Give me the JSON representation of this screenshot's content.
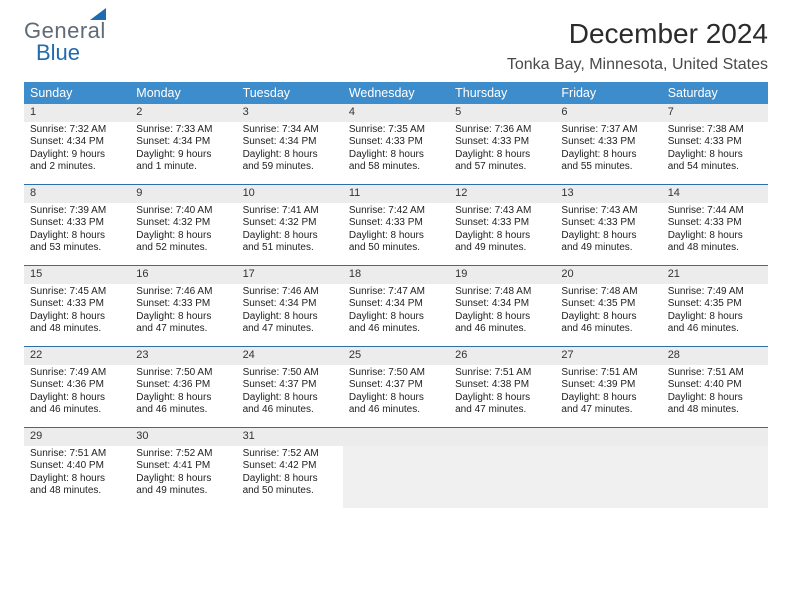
{
  "logo": {
    "text_gray": "Gener",
    "text_a": "a",
    "text_l": "l",
    "text_blue": "Blue"
  },
  "header": {
    "month_title": "December 2024",
    "location": "Tonka Bay, Minnesota, United States"
  },
  "colors": {
    "header_bg": "#3d8ccc",
    "header_text": "#ffffff",
    "week_divider": "#2f6fa8",
    "daynum_bg": "#ececec",
    "logo_gray": "#5f6b76",
    "logo_blue": "#1f6bb0",
    "page_bg": "#ffffff"
  },
  "day_names": [
    "Sunday",
    "Monday",
    "Tuesday",
    "Wednesday",
    "Thursday",
    "Friday",
    "Saturday"
  ],
  "weeks": [
    [
      {
        "n": "1",
        "sunrise": "Sunrise: 7:32 AM",
        "sunset": "Sunset: 4:34 PM",
        "daylight": "Daylight: 9 hours and 2 minutes."
      },
      {
        "n": "2",
        "sunrise": "Sunrise: 7:33 AM",
        "sunset": "Sunset: 4:34 PM",
        "daylight": "Daylight: 9 hours and 1 minute."
      },
      {
        "n": "3",
        "sunrise": "Sunrise: 7:34 AM",
        "sunset": "Sunset: 4:34 PM",
        "daylight": "Daylight: 8 hours and 59 minutes."
      },
      {
        "n": "4",
        "sunrise": "Sunrise: 7:35 AM",
        "sunset": "Sunset: 4:33 PM",
        "daylight": "Daylight: 8 hours and 58 minutes."
      },
      {
        "n": "5",
        "sunrise": "Sunrise: 7:36 AM",
        "sunset": "Sunset: 4:33 PM",
        "daylight": "Daylight: 8 hours and 57 minutes."
      },
      {
        "n": "6",
        "sunrise": "Sunrise: 7:37 AM",
        "sunset": "Sunset: 4:33 PM",
        "daylight": "Daylight: 8 hours and 55 minutes."
      },
      {
        "n": "7",
        "sunrise": "Sunrise: 7:38 AM",
        "sunset": "Sunset: 4:33 PM",
        "daylight": "Daylight: 8 hours and 54 minutes."
      }
    ],
    [
      {
        "n": "8",
        "sunrise": "Sunrise: 7:39 AM",
        "sunset": "Sunset: 4:33 PM",
        "daylight": "Daylight: 8 hours and 53 minutes."
      },
      {
        "n": "9",
        "sunrise": "Sunrise: 7:40 AM",
        "sunset": "Sunset: 4:32 PM",
        "daylight": "Daylight: 8 hours and 52 minutes."
      },
      {
        "n": "10",
        "sunrise": "Sunrise: 7:41 AM",
        "sunset": "Sunset: 4:32 PM",
        "daylight": "Daylight: 8 hours and 51 minutes."
      },
      {
        "n": "11",
        "sunrise": "Sunrise: 7:42 AM",
        "sunset": "Sunset: 4:33 PM",
        "daylight": "Daylight: 8 hours and 50 minutes."
      },
      {
        "n": "12",
        "sunrise": "Sunrise: 7:43 AM",
        "sunset": "Sunset: 4:33 PM",
        "daylight": "Daylight: 8 hours and 49 minutes."
      },
      {
        "n": "13",
        "sunrise": "Sunrise: 7:43 AM",
        "sunset": "Sunset: 4:33 PM",
        "daylight": "Daylight: 8 hours and 49 minutes."
      },
      {
        "n": "14",
        "sunrise": "Sunrise: 7:44 AM",
        "sunset": "Sunset: 4:33 PM",
        "daylight": "Daylight: 8 hours and 48 minutes."
      }
    ],
    [
      {
        "n": "15",
        "sunrise": "Sunrise: 7:45 AM",
        "sunset": "Sunset: 4:33 PM",
        "daylight": "Daylight: 8 hours and 48 minutes."
      },
      {
        "n": "16",
        "sunrise": "Sunrise: 7:46 AM",
        "sunset": "Sunset: 4:33 PM",
        "daylight": "Daylight: 8 hours and 47 minutes."
      },
      {
        "n": "17",
        "sunrise": "Sunrise: 7:46 AM",
        "sunset": "Sunset: 4:34 PM",
        "daylight": "Daylight: 8 hours and 47 minutes."
      },
      {
        "n": "18",
        "sunrise": "Sunrise: 7:47 AM",
        "sunset": "Sunset: 4:34 PM",
        "daylight": "Daylight: 8 hours and 46 minutes."
      },
      {
        "n": "19",
        "sunrise": "Sunrise: 7:48 AM",
        "sunset": "Sunset: 4:34 PM",
        "daylight": "Daylight: 8 hours and 46 minutes."
      },
      {
        "n": "20",
        "sunrise": "Sunrise: 7:48 AM",
        "sunset": "Sunset: 4:35 PM",
        "daylight": "Daylight: 8 hours and 46 minutes."
      },
      {
        "n": "21",
        "sunrise": "Sunrise: 7:49 AM",
        "sunset": "Sunset: 4:35 PM",
        "daylight": "Daylight: 8 hours and 46 minutes."
      }
    ],
    [
      {
        "n": "22",
        "sunrise": "Sunrise: 7:49 AM",
        "sunset": "Sunset: 4:36 PM",
        "daylight": "Daylight: 8 hours and 46 minutes."
      },
      {
        "n": "23",
        "sunrise": "Sunrise: 7:50 AM",
        "sunset": "Sunset: 4:36 PM",
        "daylight": "Daylight: 8 hours and 46 minutes."
      },
      {
        "n": "24",
        "sunrise": "Sunrise: 7:50 AM",
        "sunset": "Sunset: 4:37 PM",
        "daylight": "Daylight: 8 hours and 46 minutes."
      },
      {
        "n": "25",
        "sunrise": "Sunrise: 7:50 AM",
        "sunset": "Sunset: 4:37 PM",
        "daylight": "Daylight: 8 hours and 46 minutes."
      },
      {
        "n": "26",
        "sunrise": "Sunrise: 7:51 AM",
        "sunset": "Sunset: 4:38 PM",
        "daylight": "Daylight: 8 hours and 47 minutes."
      },
      {
        "n": "27",
        "sunrise": "Sunrise: 7:51 AM",
        "sunset": "Sunset: 4:39 PM",
        "daylight": "Daylight: 8 hours and 47 minutes."
      },
      {
        "n": "28",
        "sunrise": "Sunrise: 7:51 AM",
        "sunset": "Sunset: 4:40 PM",
        "daylight": "Daylight: 8 hours and 48 minutes."
      }
    ],
    [
      {
        "n": "29",
        "sunrise": "Sunrise: 7:51 AM",
        "sunset": "Sunset: 4:40 PM",
        "daylight": "Daylight: 8 hours and 48 minutes."
      },
      {
        "n": "30",
        "sunrise": "Sunrise: 7:52 AM",
        "sunset": "Sunset: 4:41 PM",
        "daylight": "Daylight: 8 hours and 49 minutes."
      },
      {
        "n": "31",
        "sunrise": "Sunrise: 7:52 AM",
        "sunset": "Sunset: 4:42 PM",
        "daylight": "Daylight: 8 hours and 50 minutes."
      },
      null,
      null,
      null,
      null
    ]
  ]
}
